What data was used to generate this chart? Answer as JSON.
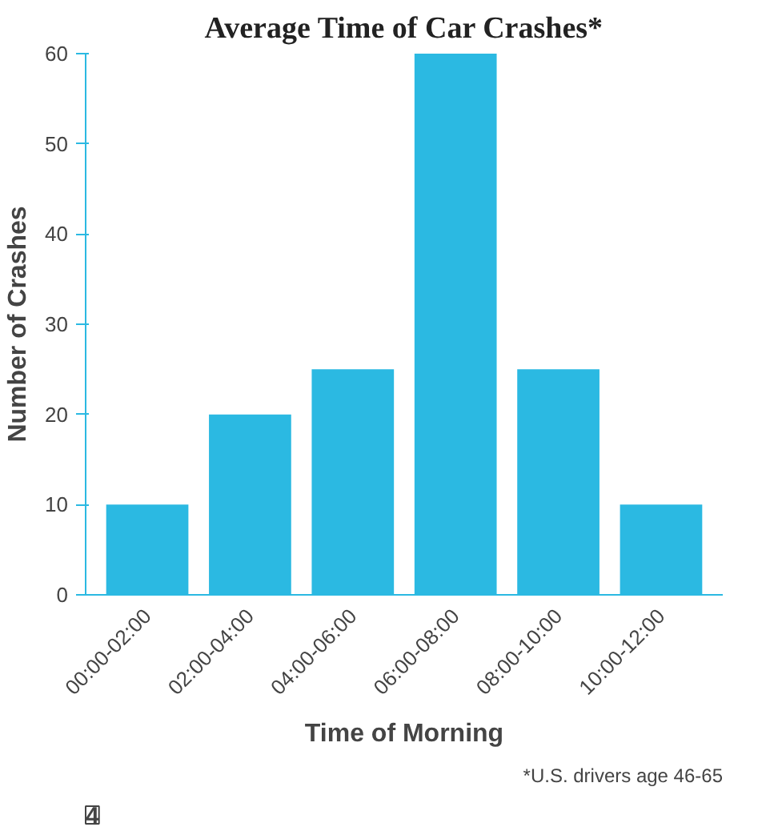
{
  "chart_data": {
    "type": "bar",
    "title": "Average Time of Car Crashes*",
    "xlabel": "Time of Morning",
    "ylabel": "Number of Crashes",
    "categories": [
      "00:00-02:00",
      "02:00-04:00",
      "04:00-06:00",
      "06:00-08:00",
      "08:00-10:00",
      "10:00-12:00"
    ],
    "values": [
      10,
      20,
      25,
      60,
      25,
      10
    ],
    "color": "#2bb9e2",
    "ylim": [
      0,
      60
    ],
    "yticks": [
      0,
      10,
      20,
      30,
      40,
      50,
      60
    ],
    "grid": false,
    "annotations": [
      "*U.S. drivers age 46-65",
      "4"
    ]
  }
}
